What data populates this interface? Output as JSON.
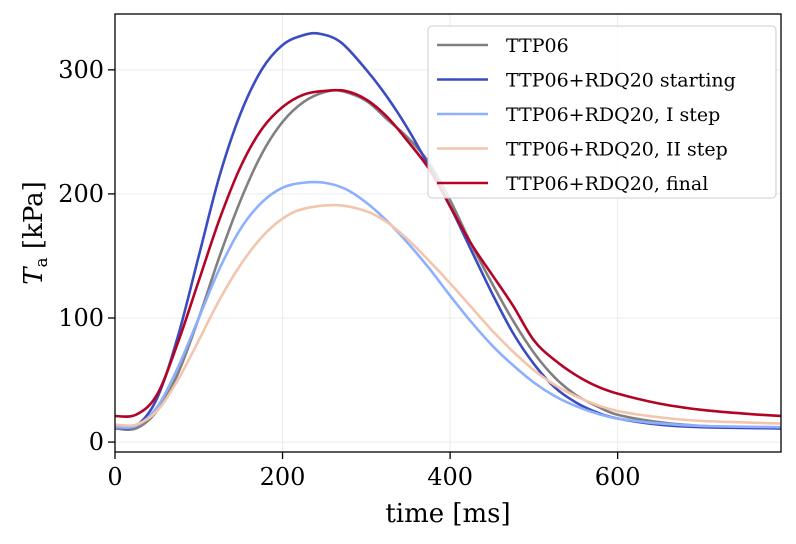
{
  "chart_data": {
    "type": "line",
    "xlabel": "time [ms]",
    "ylabel": "T_a [kPa]",
    "ylabel_main": "T",
    "ylabel_sub": "a",
    "ylabel_unit": " [kPa]",
    "xlim": [
      0,
      795
    ],
    "ylim": [
      -8,
      345
    ],
    "xticks": [
      0,
      200,
      400,
      600
    ],
    "yticks": [
      0,
      100,
      200,
      300
    ],
    "grid": true,
    "legend_position": "top-right",
    "series": [
      {
        "name": "TTP06",
        "color": "#808080",
        "x": [
          0,
          25,
          50,
          75,
          100,
          125,
          150,
          175,
          200,
          225,
          250,
          270,
          300,
          325,
          350,
          375,
          400,
          425,
          450,
          475,
          500,
          525,
          550,
          575,
          600,
          650,
          700,
          750,
          795
        ],
        "y": [
          11,
          11,
          25,
          55,
          100,
          150,
          195,
          232,
          258,
          274,
          282,
          283,
          275,
          260,
          245,
          225,
          195,
          160,
          128,
          98,
          72,
          52,
          38,
          29,
          22,
          16,
          13,
          12,
          11
        ]
      },
      {
        "name": "TTP06+RDQ20 starting",
        "color": "#3b4cc0",
        "x": [
          0,
          25,
          50,
          75,
          100,
          125,
          150,
          175,
          200,
          225,
          245,
          270,
          300,
          325,
          350,
          375,
          400,
          425,
          450,
          475,
          500,
          525,
          550,
          575,
          600,
          650,
          700,
          795
        ],
        "y": [
          12,
          13,
          35,
          85,
          150,
          215,
          265,
          300,
          320,
          328,
          329,
          322,
          300,
          278,
          252,
          222,
          190,
          155,
          120,
          88,
          63,
          44,
          32,
          24,
          19,
          14,
          12,
          11
        ]
      },
      {
        "name": "TTP06+RDQ20, I step",
        "color": "#8db0fe",
        "x": [
          0,
          25,
          50,
          75,
          100,
          125,
          150,
          175,
          200,
          225,
          250,
          275,
          300,
          325,
          350,
          375,
          400,
          425,
          450,
          475,
          500,
          525,
          550,
          575,
          600,
          650,
          700,
          795
        ],
        "y": [
          12,
          13,
          28,
          60,
          100,
          140,
          172,
          193,
          205,
          209,
          209,
          204,
          193,
          178,
          160,
          140,
          118,
          97,
          78,
          62,
          48,
          37,
          29,
          23,
          19,
          15,
          13,
          12
        ]
      },
      {
        "name": "TTP06+RDQ20, II step",
        "color": "#f4c5ad",
        "x": [
          0,
          25,
          50,
          75,
          100,
          125,
          150,
          175,
          200,
          225,
          265,
          300,
          325,
          350,
          375,
          400,
          425,
          450,
          475,
          500,
          525,
          550,
          575,
          600,
          650,
          700,
          795
        ],
        "y": [
          14,
          14,
          25,
          50,
          82,
          115,
          143,
          165,
          180,
          188,
          191,
          186,
          177,
          163,
          146,
          128,
          109,
          90,
          73,
          58,
          46,
          37,
          30,
          25,
          20,
          17,
          15
        ]
      },
      {
        "name": "TTP06+RDQ20, final",
        "color": "#b40426",
        "x": [
          0,
          25,
          50,
          75,
          100,
          125,
          150,
          175,
          200,
          225,
          250,
          275,
          300,
          325,
          350,
          375,
          400,
          425,
          450,
          475,
          500,
          525,
          550,
          575,
          600,
          650,
          700,
          750,
          795
        ],
        "y": [
          21,
          22,
          38,
          80,
          130,
          180,
          222,
          252,
          270,
          280,
          283,
          283,
          276,
          262,
          242,
          220,
          190,
          160,
          135,
          110,
          82,
          66,
          54,
          45,
          39,
          31,
          26,
          23,
          21
        ]
      }
    ]
  }
}
